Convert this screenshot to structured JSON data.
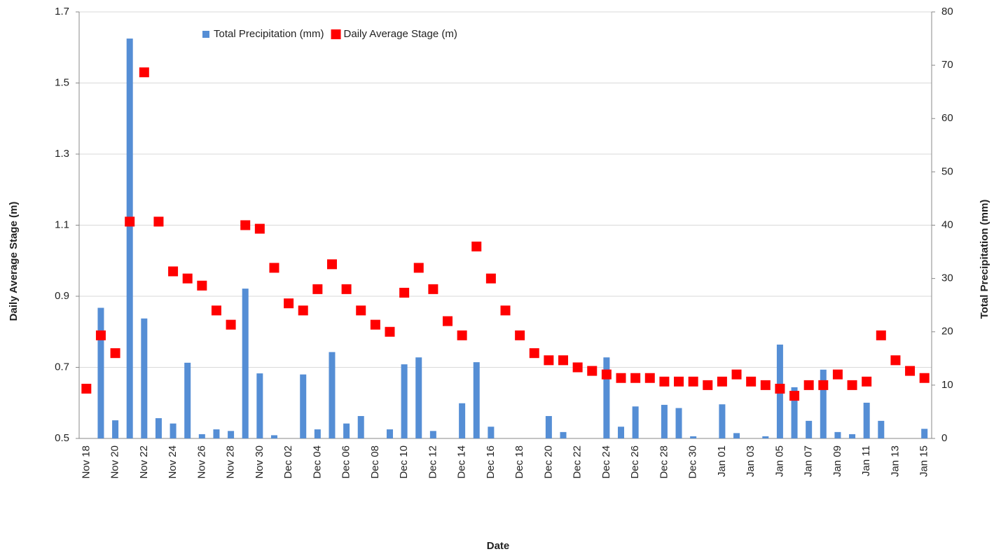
{
  "chart_data": {
    "type": "combo",
    "x_label": "Date",
    "y_label": "Daily Average Stage (m)",
    "y2_label": "Total Precipitation (mm)",
    "categories": [
      "Nov 18",
      null,
      "Nov 20",
      null,
      "Nov 22",
      null,
      "Nov 24",
      null,
      "Nov 26",
      null,
      "Nov 28",
      null,
      "Nov 30",
      null,
      "Dec 02",
      null,
      "Dec 04",
      null,
      "Dec 06",
      null,
      "Dec 08",
      null,
      "Dec 10",
      null,
      "Dec 12",
      null,
      "Dec 14",
      null,
      "Dec 16",
      null,
      "Dec 18",
      null,
      "Dec 20",
      null,
      "Dec 22",
      null,
      "Dec 24",
      null,
      "Dec 26",
      null,
      "Dec 28",
      null,
      "Dec 30",
      null,
      "Jan 01",
      null,
      "Jan 03",
      null,
      "Jan 05",
      null,
      "Jan 07",
      null,
      "Jan 09",
      null,
      "Jan 11",
      null,
      "Jan 13",
      null,
      "Jan 15"
    ],
    "series": [
      {
        "name": "Total Precipitation (mm)",
        "type": "bar",
        "axis": "y2",
        "color": "#558ed5",
        "values": [
          0,
          24.5,
          3.4,
          75,
          22.5,
          3.8,
          2.8,
          14.2,
          0.8,
          1.7,
          1.4,
          28.1,
          12.2,
          0.6,
          0,
          12.0,
          1.7,
          16.2,
          2.8,
          4.2,
          0,
          1.7,
          13.9,
          15.2,
          1.4,
          0,
          6.6,
          14.3,
          2.2,
          0,
          0,
          0,
          4.2,
          1.2,
          0,
          0,
          15.2,
          2.2,
          6.0,
          0,
          6.3,
          5.7,
          0.4,
          0,
          6.4,
          1.0,
          0,
          0.4,
          17.6,
          9.6,
          3.3,
          12.9,
          1.2,
          0.8,
          6.7,
          3.3,
          0,
          0,
          1.8
        ]
      },
      {
        "name": "Daily Average Stage (m)",
        "type": "scatter",
        "axis": "y",
        "color": "#ff0000",
        "values": [
          0.64,
          0.79,
          0.74,
          1.11,
          1.53,
          1.11,
          0.97,
          0.95,
          0.93,
          0.86,
          0.82,
          1.1,
          1.09,
          0.98,
          0.88,
          0.86,
          0.92,
          0.99,
          0.92,
          0.86,
          0.82,
          0.8,
          0.91,
          0.98,
          0.92,
          0.83,
          0.79,
          1.04,
          0.95,
          0.86,
          0.79,
          0.74,
          0.72,
          0.72,
          0.7,
          0.69,
          0.68,
          0.67,
          0.67,
          0.67,
          0.66,
          0.66,
          0.66,
          0.65,
          0.66,
          0.68,
          0.66,
          0.65,
          0.64,
          0.62,
          0.65,
          0.65,
          0.68,
          0.65,
          0.66,
          0.79,
          0.72,
          0.69,
          0.67
        ]
      }
    ],
    "ylim": [
      0.5,
      1.7
    ],
    "yticks": [
      0.5,
      0.7,
      0.9,
      1.1,
      1.3,
      1.5,
      1.7
    ],
    "y2lim": [
      0,
      80
    ],
    "y2ticks": [
      0,
      10,
      20,
      30,
      40,
      50,
      60,
      70,
      80
    ],
    "grid": true,
    "legend": "top"
  }
}
